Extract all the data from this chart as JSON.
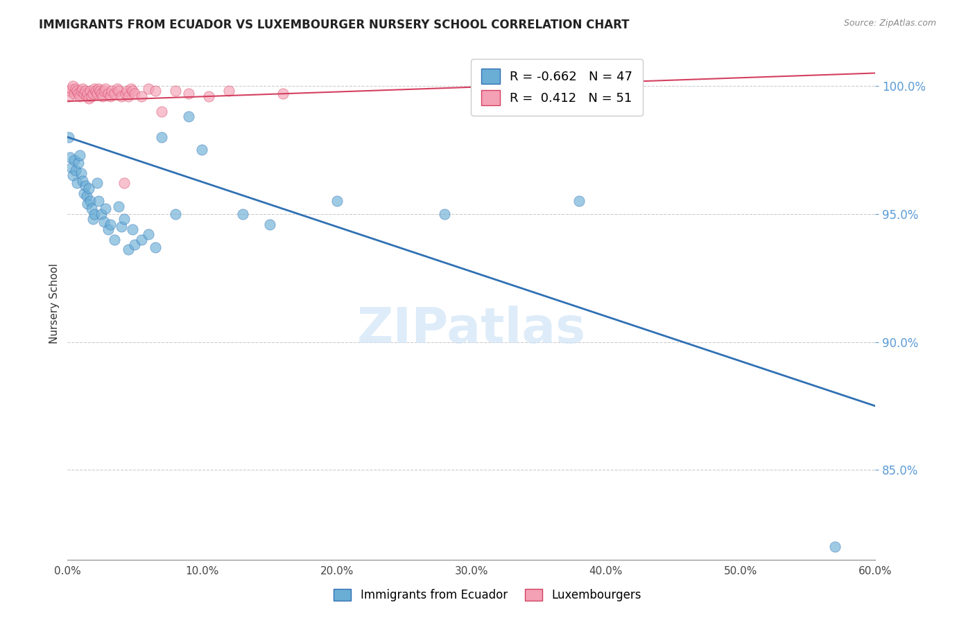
{
  "title": "IMMIGRANTS FROM ECUADOR VS LUXEMBOURGER NURSERY SCHOOL CORRELATION CHART",
  "source": "Source: ZipAtlas.com",
  "xlabel": "",
  "ylabel": "Nursery School",
  "xlim": [
    0.0,
    0.6
  ],
  "ylim": [
    0.815,
    1.015
  ],
  "yticks": [
    0.85,
    0.9,
    0.95,
    1.0
  ],
  "xticks": [
    0.0,
    0.1,
    0.2,
    0.3,
    0.4,
    0.5,
    0.6
  ],
  "blue_scatter_x": [
    0.001,
    0.002,
    0.003,
    0.004,
    0.005,
    0.006,
    0.007,
    0.008,
    0.009,
    0.01,
    0.011,
    0.012,
    0.013,
    0.014,
    0.015,
    0.016,
    0.017,
    0.018,
    0.019,
    0.02,
    0.022,
    0.023,
    0.025,
    0.027,
    0.028,
    0.03,
    0.032,
    0.035,
    0.038,
    0.04,
    0.042,
    0.045,
    0.048,
    0.05,
    0.055,
    0.06,
    0.065,
    0.07,
    0.08,
    0.09,
    0.1,
    0.13,
    0.15,
    0.2,
    0.28,
    0.38,
    0.57
  ],
  "blue_scatter_y": [
    0.98,
    0.972,
    0.968,
    0.965,
    0.971,
    0.967,
    0.962,
    0.97,
    0.973,
    0.966,
    0.963,
    0.958,
    0.961,
    0.957,
    0.954,
    0.96,
    0.955,
    0.952,
    0.948,
    0.95,
    0.962,
    0.955,
    0.95,
    0.947,
    0.952,
    0.944,
    0.946,
    0.94,
    0.953,
    0.945,
    0.948,
    0.936,
    0.944,
    0.938,
    0.94,
    0.942,
    0.937,
    0.98,
    0.95,
    0.988,
    0.975,
    0.95,
    0.946,
    0.955,
    0.95,
    0.955,
    0.82
  ],
  "pink_scatter_x": [
    0.001,
    0.002,
    0.003,
    0.004,
    0.005,
    0.006,
    0.007,
    0.008,
    0.009,
    0.01,
    0.011,
    0.012,
    0.013,
    0.014,
    0.015,
    0.016,
    0.017,
    0.018,
    0.019,
    0.02,
    0.021,
    0.022,
    0.023,
    0.024,
    0.025,
    0.026,
    0.027,
    0.028,
    0.03,
    0.032,
    0.033,
    0.035,
    0.037,
    0.038,
    0.04,
    0.042,
    0.043,
    0.044,
    0.045,
    0.047,
    0.048,
    0.05,
    0.055,
    0.06,
    0.065,
    0.07,
    0.08,
    0.09,
    0.105,
    0.12,
    0.16
  ],
  "pink_scatter_y": [
    0.996,
    0.998,
    0.999,
    1.0,
    0.997,
    0.999,
    0.998,
    0.997,
    0.996,
    0.998,
    0.999,
    0.997,
    0.998,
    0.996,
    0.997,
    0.995,
    0.998,
    0.996,
    0.997,
    0.999,
    0.998,
    0.997,
    0.999,
    0.998,
    0.997,
    0.996,
    0.998,
    0.999,
    0.997,
    0.996,
    0.998,
    0.997,
    0.999,
    0.998,
    0.996,
    0.962,
    0.997,
    0.998,
    0.996,
    0.999,
    0.998,
    0.997,
    0.996,
    0.999,
    0.998,
    0.99,
    0.998,
    0.997,
    0.996,
    0.998,
    0.997
  ],
  "blue_line_x": [
    0.0,
    0.6
  ],
  "blue_line_y": [
    0.98,
    0.875
  ],
  "pink_line_x": [
    0.0,
    0.6
  ],
  "pink_line_y": [
    0.994,
    1.005
  ],
  "blue_color": "#6aaed6",
  "pink_color": "#f4a0b5",
  "blue_line_color": "#3070b3",
  "pink_line_color": "#d44060",
  "legend_r_blue": "-0.662",
  "legend_n_blue": "47",
  "legend_r_pink": "0.412",
  "legend_n_pink": "51",
  "legend_label_blue": "Immigrants from Ecuador",
  "legend_label_pink": "Luxembourgers",
  "watermark": "ZIPatlas",
  "grid_color": "#cccccc",
  "axis_color": "#5b9bd5",
  "right_axis_color": "#5b9bd5"
}
